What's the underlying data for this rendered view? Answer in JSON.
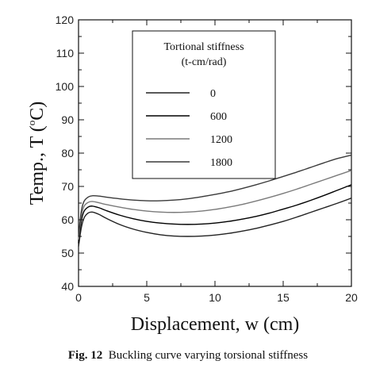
{
  "chart_data": {
    "type": "line",
    "xlabel": "Displacement, w (cm)",
    "ylabel_main": "Temp., T (",
    "ylabel_sup": "o",
    "ylabel_end": "C)",
    "xlim": [
      0,
      20
    ],
    "ylim": [
      40,
      120
    ],
    "xticks": [
      0,
      5,
      10,
      15,
      20
    ],
    "yticks": [
      40,
      50,
      60,
      70,
      80,
      90,
      100,
      110,
      120
    ],
    "grid": false,
    "legend": {
      "placement": "top-center",
      "title_line1": "Tortional stiffness",
      "title_line2": "(t-cm/rad)"
    },
    "series": [
      {
        "name": "0",
        "color": "#222222",
        "x": [
          0,
          0.2,
          0.4,
          0.7,
          1.0,
          1.5,
          2,
          3,
          4,
          5,
          6,
          7,
          8,
          9,
          10,
          11,
          12,
          13,
          14,
          15,
          16,
          17,
          18,
          19,
          20
        ],
        "y": [
          52,
          57.5,
          60.5,
          62.0,
          62.3,
          61.6,
          60.5,
          58.6,
          57.2,
          56.2,
          55.5,
          55.1,
          55.0,
          55.1,
          55.4,
          55.9,
          56.6,
          57.4,
          58.4,
          59.5,
          60.8,
          62.2,
          63.6,
          65.0,
          66.5
        ]
      },
      {
        "name": "600",
        "color": "#000000",
        "x": [
          0,
          0.2,
          0.4,
          0.7,
          1.0,
          1.5,
          2,
          3,
          4,
          5,
          6,
          7,
          8,
          9,
          10,
          11,
          12,
          13,
          14,
          15,
          16,
          17,
          18,
          19,
          20
        ],
        "y": [
          53,
          59.5,
          62.5,
          63.8,
          64.1,
          63.6,
          62.8,
          61.4,
          60.3,
          59.5,
          59.0,
          58.7,
          58.6,
          58.7,
          59.0,
          59.5,
          60.2,
          61.0,
          62.0,
          63.2,
          64.4,
          65.8,
          67.3,
          68.9,
          70.5
        ]
      },
      {
        "name": "1200",
        "color": "#7a7a7a",
        "x": [
          0,
          0.2,
          0.4,
          0.7,
          1.0,
          1.5,
          2,
          3,
          4,
          5,
          6,
          7,
          8,
          9,
          10,
          11,
          12,
          13,
          14,
          15,
          16,
          17,
          18,
          19,
          20
        ],
        "y": [
          54,
          61.0,
          64.0,
          65.2,
          65.5,
          65.1,
          64.6,
          63.8,
          63.1,
          62.6,
          62.3,
          62.2,
          62.3,
          62.6,
          63.1,
          63.8,
          64.6,
          65.6,
          66.7,
          67.9,
          69.2,
          70.6,
          72.0,
          73.4,
          74.8
        ]
      },
      {
        "name": "1800",
        "color": "#3a3a3a",
        "x": [
          0,
          0.2,
          0.4,
          0.7,
          1.0,
          1.5,
          2,
          3,
          4,
          5,
          6,
          7,
          8,
          9,
          10,
          11,
          12,
          13,
          14,
          15,
          16,
          17,
          18,
          19,
          20
        ],
        "y": [
          55,
          62.5,
          65.5,
          66.8,
          67.2,
          67.1,
          66.8,
          66.3,
          65.9,
          65.7,
          65.7,
          65.9,
          66.3,
          66.9,
          67.6,
          68.4,
          69.4,
          70.5,
          71.7,
          73.0,
          74.3,
          75.7,
          77.1,
          78.4,
          79.4
        ]
      }
    ]
  },
  "caption": {
    "label": "Fig. 12",
    "text": "Buckling curve varying torsional stiffness"
  }
}
